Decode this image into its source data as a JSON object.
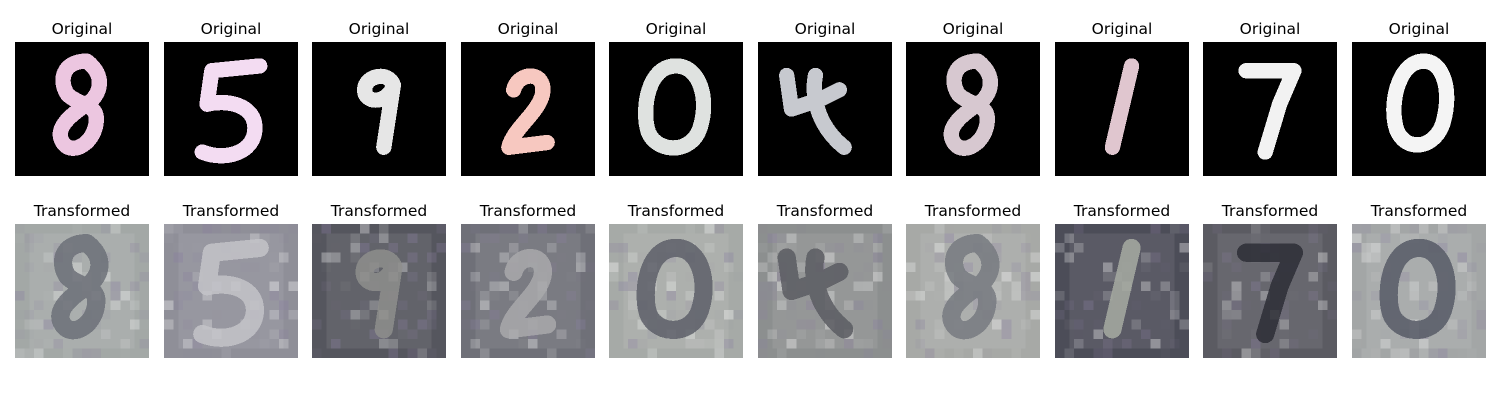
{
  "rows": [
    {
      "title": "Original",
      "background": "#000000",
      "panels": [
        {
          "digit": "8",
          "color": "#ecc6e0"
        },
        {
          "digit": "5",
          "color": "#f3dcf2"
        },
        {
          "digit": "9",
          "color": "#e6e6e6"
        },
        {
          "digit": "2",
          "color": "#f7c8c0"
        },
        {
          "digit": "0",
          "color": "#dfe2e0"
        },
        {
          "digit": "4",
          "color": "#c7c9cf"
        },
        {
          "digit": "8",
          "color": "#d7c8d0"
        },
        {
          "digit": "1",
          "color": "#e0c6cf"
        },
        {
          "digit": "7",
          "color": "#f2f2f2"
        },
        {
          "digit": "0",
          "color": "#f4f4f4"
        }
      ]
    },
    {
      "title": "Transformed",
      "panels": [
        {
          "digit": "8",
          "background": "#a3a8a6",
          "color": "#6c7078"
        },
        {
          "digit": "5",
          "background": "#8f8f98",
          "color": "#c3c3c8"
        },
        {
          "digit": "9",
          "background": "#55565e",
          "color": "#8e8e8c"
        },
        {
          "digit": "2",
          "background": "#6f7078",
          "color": "#a9a9ac"
        },
        {
          "digit": "0",
          "background": "#a6aaa7",
          "color": "#5d5f68"
        },
        {
          "digit": "4",
          "background": "#8c8f8f",
          "color": "#5a5c62"
        },
        {
          "digit": "8",
          "background": "#a7a9a6",
          "color": "#777a80"
        },
        {
          "digit": "1",
          "background": "#4c4d58",
          "color": "#a7aca2"
        },
        {
          "digit": "7",
          "background": "#5b5b62",
          "color": "#2d2e36"
        },
        {
          "digit": "0",
          "background": "#a3a6a6",
          "color": "#575a66"
        }
      ]
    }
  ]
}
